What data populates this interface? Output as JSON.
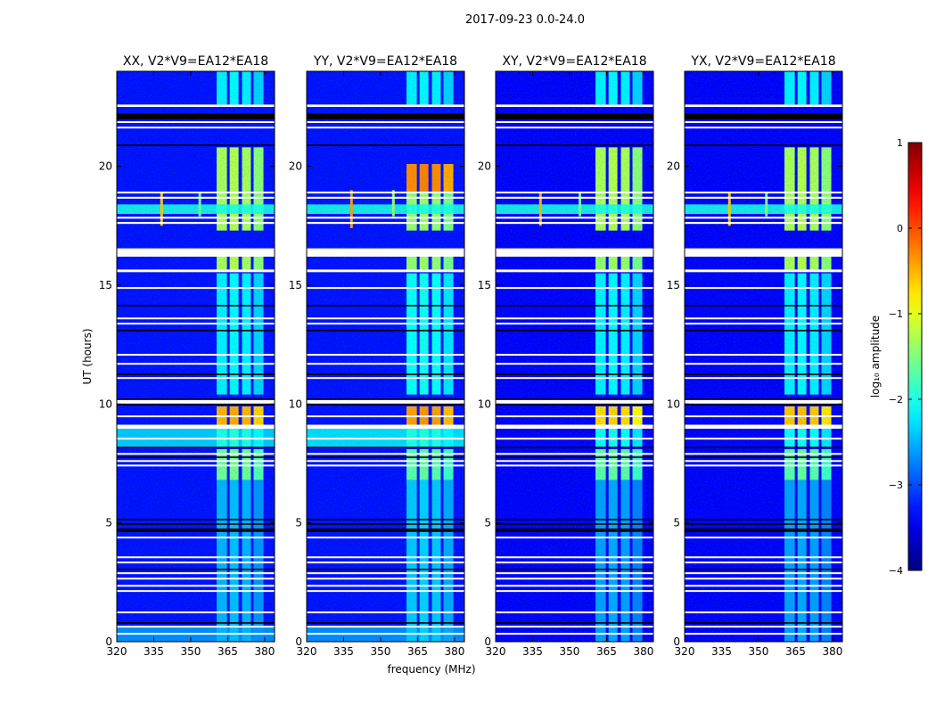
{
  "chart_data": {
    "type": "heatmap",
    "title": "2017-09-23 0.0-24.0",
    "xlabel": "frequency (MHz)",
    "ylabel": "UT (hours)",
    "xlim": [
      320,
      384
    ],
    "ylim": [
      0,
      24
    ],
    "xticks": [
      320,
      335,
      350,
      365,
      380
    ],
    "xtick_labels": [
      "320",
      "335",
      "350",
      "365",
      "380"
    ],
    "yticks": [
      0,
      5,
      10,
      15,
      20
    ],
    "ytick_labels": [
      "0",
      "5",
      "10",
      "15",
      "20"
    ],
    "colorbar": {
      "label": "log₁₀ amplitude",
      "range": [
        -4,
        1
      ],
      "ticks": [
        -4,
        -3,
        -2,
        -1,
        0,
        1
      ],
      "tick_labels": [
        "−4",
        "−3",
        "−2",
        "−1",
        "0",
        "1"
      ],
      "colormap": "jet"
    },
    "channel_bands_mhz": [
      [
        360.5,
        364.7
      ],
      [
        365.8,
        369.4
      ],
      [
        370.8,
        374.4
      ],
      [
        375.5,
        379.5
      ]
    ],
    "flagged_white_hours": [
      [
        22.5,
        22.6
      ],
      [
        21.83,
        21.9
      ],
      [
        21.6,
        21.67
      ],
      [
        18.86,
        18.94
      ],
      [
        18.64,
        18.72
      ],
      [
        17.8,
        17.88
      ],
      [
        17.58,
        17.66
      ],
      [
        16.2,
        16.55
      ],
      [
        15.55,
        15.66
      ],
      [
        14.86,
        14.92
      ],
      [
        13.58,
        13.64
      ],
      [
        13.36,
        13.42
      ],
      [
        12.05,
        12.11
      ],
      [
        11.67,
        11.73
      ],
      [
        11.07,
        11.13
      ],
      [
        10.02,
        10.18
      ],
      [
        9.46,
        9.52
      ],
      [
        8.96,
        9.13
      ],
      [
        8.52,
        8.58
      ],
      [
        7.88,
        7.94
      ],
      [
        7.58,
        7.64
      ],
      [
        7.39,
        7.45
      ],
      [
        4.36,
        4.42
      ],
      [
        3.53,
        3.59
      ],
      [
        3.31,
        3.37
      ],
      [
        2.86,
        2.92
      ],
      [
        2.63,
        2.69
      ],
      [
        2.33,
        2.39
      ],
      [
        2.11,
        2.17
      ],
      [
        1.21,
        1.27
      ],
      [
        0.61,
        0.67
      ],
      [
        0.31,
        0.37
      ]
    ],
    "dead_black_hours": [
      [
        21.98,
        22.22
      ],
      [
        20.86,
        20.92
      ],
      [
        14.11,
        14.17
      ],
      [
        13.06,
        13.12
      ],
      [
        11.22,
        11.28
      ],
      [
        10.17,
        10.23
      ],
      [
        9.94,
        10.0
      ],
      [
        8.14,
        8.2
      ],
      [
        7.73,
        7.79
      ],
      [
        5.11,
        5.17
      ],
      [
        4.92,
        4.98
      ],
      [
        4.62,
        4.76
      ],
      [
        3.01,
        3.07
      ],
      [
        0.76,
        0.82
      ]
    ],
    "panels": [
      {
        "title": "XX, V2*V9=EA12*EA18",
        "background": -3.3,
        "broadband": [
          {
            "hours": [
              8.2,
              9.1
            ],
            "value": -2.4
          },
          {
            "hours": [
              0,
              0.6
            ],
            "value": -2.7
          }
        ],
        "rfi_band": {
          "hours": [
            18.0,
            18.4
          ],
          "value": -2.0
        },
        "rfi_spikes": [
          {
            "mhz": 338,
            "hours": [
              17.5,
              18.9
            ],
            "value": -0.6
          },
          {
            "mhz": 353.5,
            "hours": [
              17.9,
              18.9
            ],
            "value": -1.6
          }
        ],
        "band_segments": [
          {
            "hours": [
              22.6,
              24
            ],
            "value": -2.2
          },
          {
            "hours": [
              17.3,
              20.8
            ],
            "value": -1.3
          },
          {
            "hours": [
              15.6,
              16.2
            ],
            "value": -1.3
          },
          {
            "hours": [
              10.4,
              15.5
            ],
            "value": -2.2
          },
          {
            "hours": [
              9.1,
              9.9
            ],
            "value": -0.5
          },
          {
            "hours": [
              8.2,
              9.0
            ],
            "value": -2.0
          },
          {
            "hours": [
              6.8,
              8.1
            ],
            "value": -1.6
          },
          {
            "hours": [
              0,
              6.8
            ],
            "value": -2.5
          }
        ]
      },
      {
        "title": "YY, V2*V9=EA12*EA18",
        "background": -3.3,
        "broadband": [
          {
            "hours": [
              8.2,
              9.1
            ],
            "value": -2.3
          },
          {
            "hours": [
              0,
              0.6
            ],
            "value": -2.7
          }
        ],
        "rfi_band": {
          "hours": [
            18.0,
            18.4
          ],
          "value": -2.0
        },
        "rfi_spikes": [
          {
            "mhz": 338,
            "hours": [
              17.4,
              19.0
            ],
            "value": -0.4
          },
          {
            "mhz": 355,
            "hours": [
              17.9,
              19.0
            ],
            "value": -1.4
          }
        ],
        "band_segments": [
          {
            "hours": [
              22.6,
              24
            ],
            "value": -2.2
          },
          {
            "hours": [
              18.9,
              20.1
            ],
            "value": -0.3
          },
          {
            "hours": [
              17.3,
              18.9
            ],
            "value": -1.4
          },
          {
            "hours": [
              15.6,
              16.2
            ],
            "value": -1.4
          },
          {
            "hours": [
              10.4,
              15.5
            ],
            "value": -2.1
          },
          {
            "hours": [
              9.1,
              9.9
            ],
            "value": -0.4
          },
          {
            "hours": [
              8.2,
              9.0
            ],
            "value": -2.0
          },
          {
            "hours": [
              6.8,
              8.1
            ],
            "value": -1.7
          },
          {
            "hours": [
              0,
              6.8
            ],
            "value": -2.4
          }
        ]
      },
      {
        "title": "XY, V2*V9=EA12*EA18",
        "background": -3.4,
        "broadband": [],
        "rfi_band": {
          "hours": [
            18.0,
            18.4
          ],
          "value": -2.0
        },
        "rfi_spikes": [
          {
            "mhz": 338,
            "hours": [
              17.5,
              18.9
            ],
            "value": -0.5
          },
          {
            "mhz": 354,
            "hours": [
              17.9,
              18.9
            ],
            "value": -1.6
          }
        ],
        "band_segments": [
          {
            "hours": [
              22.6,
              24
            ],
            "value": -2.2
          },
          {
            "hours": [
              17.3,
              20.8
            ],
            "value": -1.3
          },
          {
            "hours": [
              15.6,
              16.2
            ],
            "value": -1.4
          },
          {
            "hours": [
              10.4,
              15.5
            ],
            "value": -2.2
          },
          {
            "hours": [
              9.1,
              9.9
            ],
            "value": -0.7
          },
          {
            "hours": [
              8.2,
              9.0
            ],
            "value": -2.1
          },
          {
            "hours": [
              6.8,
              8.1
            ],
            "value": -1.7
          },
          {
            "hours": [
              0,
              6.8
            ],
            "value": -2.6
          }
        ]
      },
      {
        "title": "YX, V2*V9=EA12*EA18",
        "background": -3.4,
        "broadband": [],
        "rfi_band": {
          "hours": [
            18.0,
            18.4
          ],
          "value": -2.0
        },
        "rfi_spikes": [
          {
            "mhz": 338,
            "hours": [
              17.5,
              18.9
            ],
            "value": -0.6
          },
          {
            "mhz": 353,
            "hours": [
              17.9,
              18.9
            ],
            "value": -1.5
          }
        ],
        "band_segments": [
          {
            "hours": [
              22.6,
              24
            ],
            "value": -2.2
          },
          {
            "hours": [
              17.3,
              20.8
            ],
            "value": -1.3
          },
          {
            "hours": [
              15.6,
              16.2
            ],
            "value": -1.3
          },
          {
            "hours": [
              10.4,
              15.5
            ],
            "value": -2.2
          },
          {
            "hours": [
              9.1,
              9.9
            ],
            "value": -0.6
          },
          {
            "hours": [
              8.2,
              9.0
            ],
            "value": -2.1
          },
          {
            "hours": [
              6.8,
              8.1
            ],
            "value": -1.7
          },
          {
            "hours": [
              0,
              6.8
            ],
            "value": -2.6
          }
        ]
      }
    ]
  }
}
